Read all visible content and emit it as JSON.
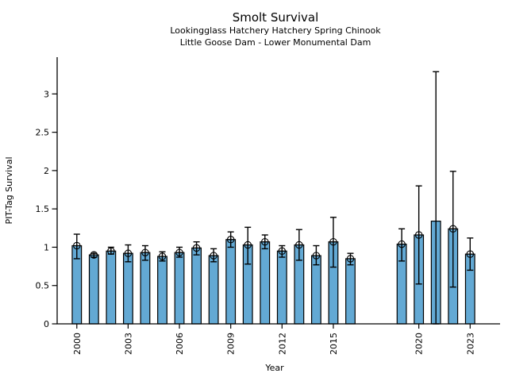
{
  "figure": {
    "title": "Smolt Survival",
    "subtitle1": "Lookingglass Hatchery Hatchery Spring Chinook",
    "subtitle2": "Little Goose Dam - Lower Monumental Dam"
  },
  "chart_data": {
    "type": "bar",
    "title": "Smolt Survival",
    "subtitle1": "Lookingglass Hatchery Hatchery Spring Chinook",
    "subtitle2": "Little Goose Dam - Lower Monumental Dam",
    "xlabel": "Year",
    "ylabel": "PIT-Tag Survival",
    "xticks": [
      2000,
      2003,
      2006,
      2009,
      2012,
      2015,
      2020,
      2023
    ],
    "xtick_labels": [
      "2000",
      "2003",
      "2006",
      "2009",
      "2012",
      "2015",
      "2020",
      "2023"
    ],
    "yticks": [
      0,
      0.5,
      1,
      1.5,
      2,
      2.5,
      3
    ],
    "ytick_labels": [
      "0",
      "0.5",
      "1",
      "1.5",
      "2",
      "2.5",
      "3"
    ],
    "xlim": [
      1998.85,
      2024.75
    ],
    "ylim": [
      0,
      3.48
    ],
    "grid": false,
    "legend": null,
    "bar_color": "#63A9D4",
    "bar_edge_color": "#000000",
    "error_color": "#000000",
    "marker_style": "circle-plus",
    "points": [
      {
        "year": 2000,
        "value": 1.02,
        "err_low": 0.85,
        "err_high": 1.17,
        "marker": true
      },
      {
        "year": 2001,
        "value": 0.9,
        "err_low": 0.87,
        "err_high": 0.92,
        "marker": true
      },
      {
        "year": 2002,
        "value": 0.95,
        "err_low": 0.91,
        "err_high": 1.0,
        "marker": true
      },
      {
        "year": 2003,
        "value": 0.92,
        "err_low": 0.81,
        "err_high": 1.03,
        "marker": true
      },
      {
        "year": 2004,
        "value": 0.93,
        "err_low": 0.83,
        "err_high": 1.02,
        "marker": true
      },
      {
        "year": 2005,
        "value": 0.88,
        "err_low": 0.82,
        "err_high": 0.94,
        "marker": true
      },
      {
        "year": 2006,
        "value": 0.93,
        "err_low": 0.87,
        "err_high": 1.0,
        "marker": true
      },
      {
        "year": 2007,
        "value": 0.99,
        "err_low": 0.9,
        "err_high": 1.07,
        "marker": true
      },
      {
        "year": 2008,
        "value": 0.89,
        "err_low": 0.81,
        "err_high": 0.98,
        "marker": true
      },
      {
        "year": 2009,
        "value": 1.1,
        "err_low": 1.0,
        "err_high": 1.2,
        "marker": true
      },
      {
        "year": 2010,
        "value": 1.03,
        "err_low": 0.78,
        "err_high": 1.26,
        "marker": true
      },
      {
        "year": 2011,
        "value": 1.07,
        "err_low": 0.98,
        "err_high": 1.16,
        "marker": true
      },
      {
        "year": 2012,
        "value": 0.95,
        "err_low": 0.87,
        "err_high": 1.02,
        "marker": true
      },
      {
        "year": 2013,
        "value": 1.03,
        "err_low": 0.83,
        "err_high": 1.23,
        "marker": true
      },
      {
        "year": 2014,
        "value": 0.89,
        "err_low": 0.77,
        "err_high": 1.02,
        "marker": true
      },
      {
        "year": 2015,
        "value": 1.07,
        "err_low": 0.74,
        "err_high": 1.39,
        "marker": true
      },
      {
        "year": 2016,
        "value": 0.85,
        "err_low": 0.77,
        "err_high": 0.92,
        "marker": true
      },
      {
        "year": 2019,
        "value": 1.04,
        "err_low": 0.82,
        "err_high": 1.24,
        "marker": true
      },
      {
        "year": 2020,
        "value": 1.16,
        "err_low": 0.52,
        "err_high": 1.8,
        "marker": true
      },
      {
        "year": 2021,
        "value": 1.34,
        "err_low": 0.0,
        "err_high": 3.29,
        "marker": false
      },
      {
        "year": 2022,
        "value": 1.24,
        "err_low": 0.48,
        "err_high": 1.99,
        "marker": true
      },
      {
        "year": 2023,
        "value": 0.91,
        "err_low": 0.7,
        "err_high": 1.12,
        "marker": true
      }
    ]
  }
}
